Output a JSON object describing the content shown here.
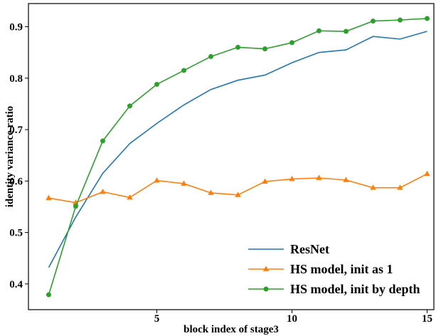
{
  "chart_data": {
    "type": "line",
    "title": "",
    "xlabel": "block index of stage3",
    "ylabel": "identity variance ratio",
    "xlim": [
      0.25,
      15.25
    ],
    "ylim": [
      0.35,
      0.945
    ],
    "xticks": [
      5,
      10,
      15
    ],
    "yticks": [
      0.4,
      0.5,
      0.6,
      0.7,
      0.8,
      0.9
    ],
    "grid": false,
    "legend": "bottom-right",
    "x": [
      1,
      2,
      3,
      4,
      5,
      6,
      7,
      8,
      9,
      10,
      11,
      12,
      13,
      14,
      15
    ],
    "series": [
      {
        "name": "ResNet",
        "color": "#1f77b4",
        "marker": "none",
        "values": [
          0.432,
          0.53,
          0.615,
          0.673,
          0.712,
          0.748,
          0.778,
          0.796,
          0.806,
          0.83,
          0.85,
          0.855,
          0.881,
          0.876,
          0.891
        ]
      },
      {
        "name": "HS model, init as 1",
        "color": "#ff7f0e",
        "marker": "triangle",
        "values": [
          0.567,
          0.558,
          0.579,
          0.568,
          0.601,
          0.595,
          0.577,
          0.573,
          0.599,
          0.604,
          0.606,
          0.602,
          0.587,
          0.587,
          0.614
        ]
      },
      {
        "name": "HS model, init by depth",
        "color": "#2ca02c",
        "marker": "circle",
        "values": [
          0.379,
          0.551,
          0.678,
          0.746,
          0.788,
          0.815,
          0.842,
          0.86,
          0.857,
          0.869,
          0.892,
          0.891,
          0.911,
          0.913,
          0.916
        ]
      }
    ]
  }
}
